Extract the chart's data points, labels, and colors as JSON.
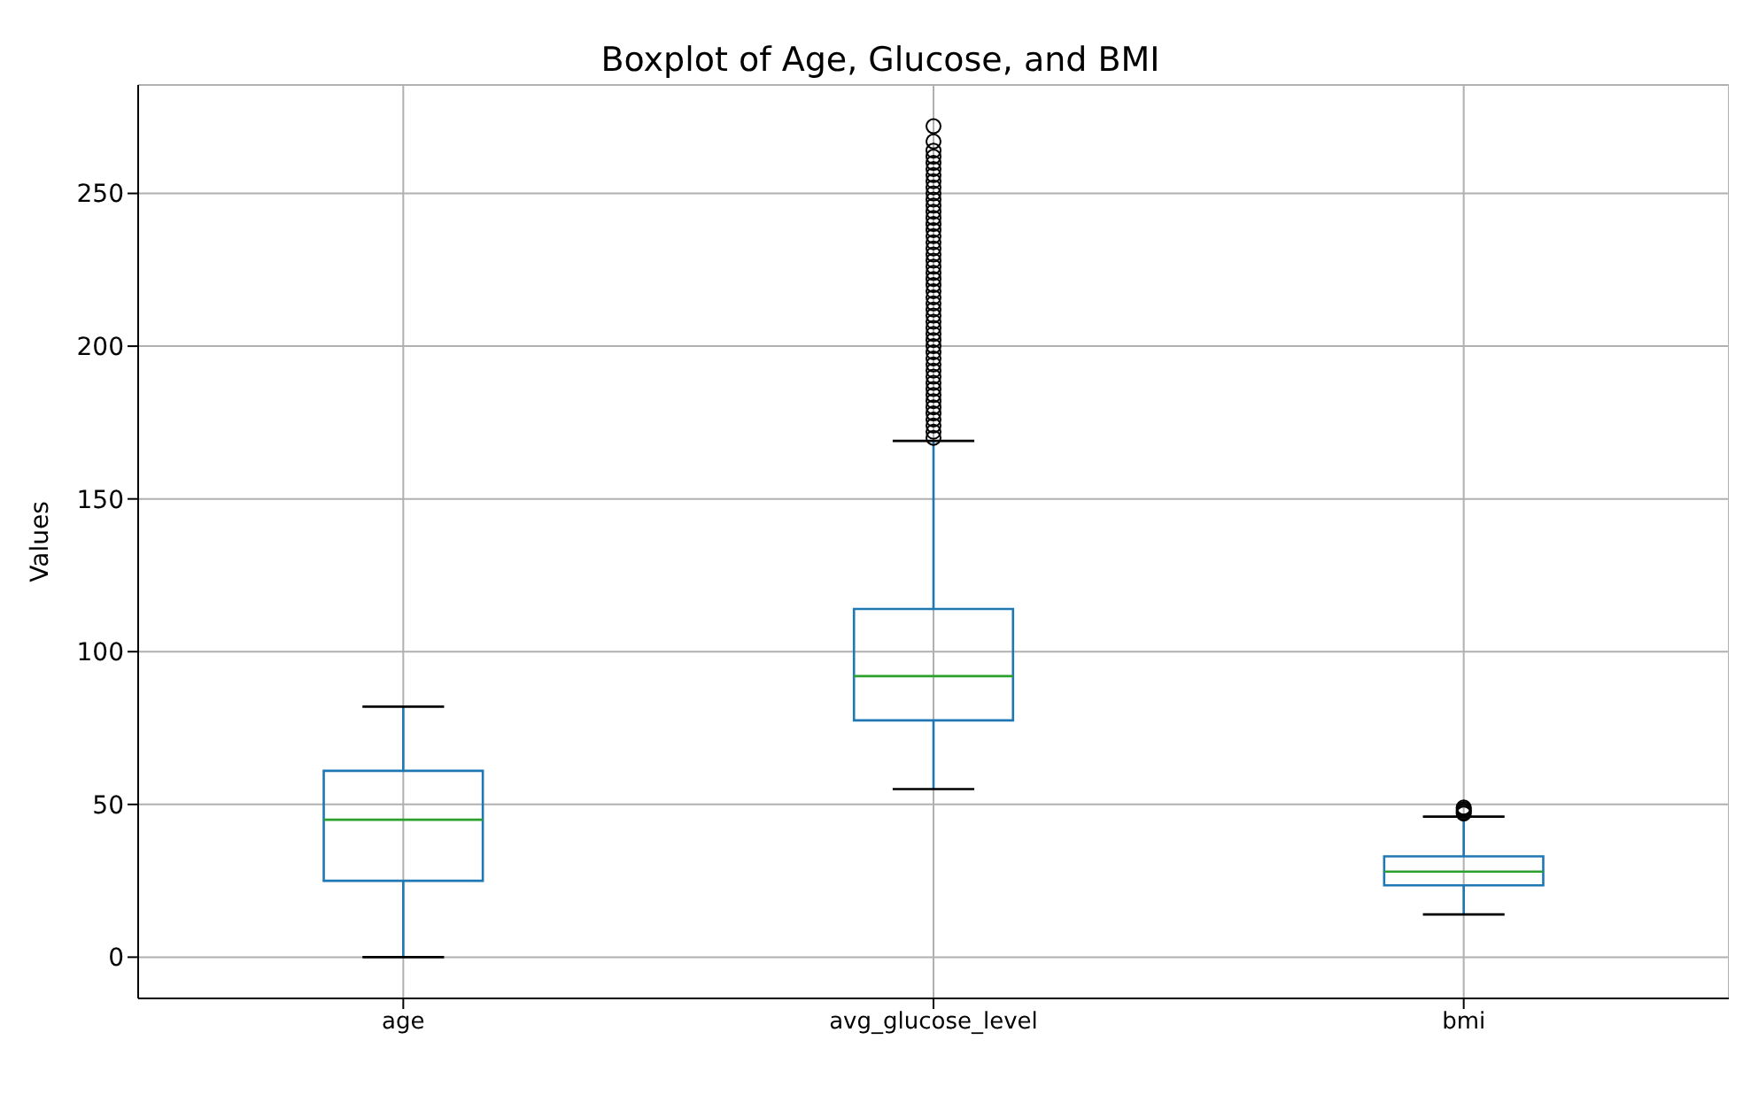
{
  "chart_data": {
    "type": "box",
    "title": "Boxplot of Age, Glucose, and BMI",
    "ylabel": "Values",
    "categories": [
      "age",
      "avg_glucose_level",
      "bmi"
    ],
    "series": [
      {
        "color": "#1f77b4",
        "boxes": [
          {
            "low": 0,
            "q1": 25,
            "median": 45,
            "q3": 61,
            "high": 82
          },
          {
            "low": 55,
            "q1": 77.5,
            "median": 92,
            "q3": 114,
            "high": 169,
            "outliers": [
              170,
              172,
              174,
              176,
              178,
              180,
              182,
              184,
              186,
              188,
              190,
              192,
              194,
              196,
              198,
              200,
              202,
              204,
              206,
              208,
              210,
              212,
              214,
              216,
              218,
              220,
              222,
              224,
              226,
              228,
              230,
              232,
              234,
              236,
              238,
              240,
              242,
              244,
              246,
              248,
              250,
              252,
              254,
              256,
              258,
              260,
              262,
              264,
              267,
              272
            ]
          },
          {
            "low": 14,
            "q1": 23.5,
            "median": 28,
            "q3": 33,
            "high": 46,
            "outliers": [
              47,
              47.5,
              48,
              48.5,
              49
            ]
          }
        ]
      }
    ],
    "ylim": [
      -13.5,
      285.5
    ],
    "yticks": [
      0,
      50,
      100,
      150,
      200,
      250
    ],
    "grid": true
  }
}
